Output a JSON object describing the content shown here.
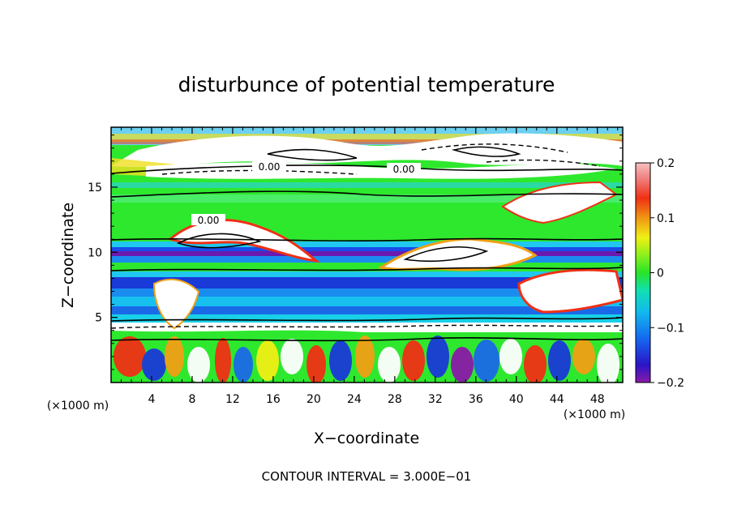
{
  "chart_data": {
    "type": "heatmap",
    "title": "disturbunce of potential temperature",
    "xlabel": "X−coordinate",
    "ylabel": "Z−coordinate",
    "x_unit": "(×1000 m)",
    "z_unit": "(×1000 m)",
    "xlim": [
      0,
      50.5
    ],
    "ylim": [
      0,
      19.6
    ],
    "x_ticks": [
      "4",
      "8",
      "12",
      "16",
      "20",
      "24",
      "28",
      "32",
      "36",
      "40",
      "44",
      "48"
    ],
    "y_ticks": [
      "5",
      "10",
      "15"
    ],
    "colorbar": {
      "min": -0.2,
      "max": 0.2,
      "tick_labels": [
        "0.2",
        "0.1",
        "0",
        "−0.1",
        "−0.2"
      ],
      "tick_values": [
        0.2,
        0.1,
        0,
        -0.1,
        -0.2
      ]
    },
    "contour_labels": [
      "0.00",
      "0.00",
      "0.00"
    ],
    "footer": "CONTOUR INTERVAL = 3.000E−01",
    "grid": false
  }
}
